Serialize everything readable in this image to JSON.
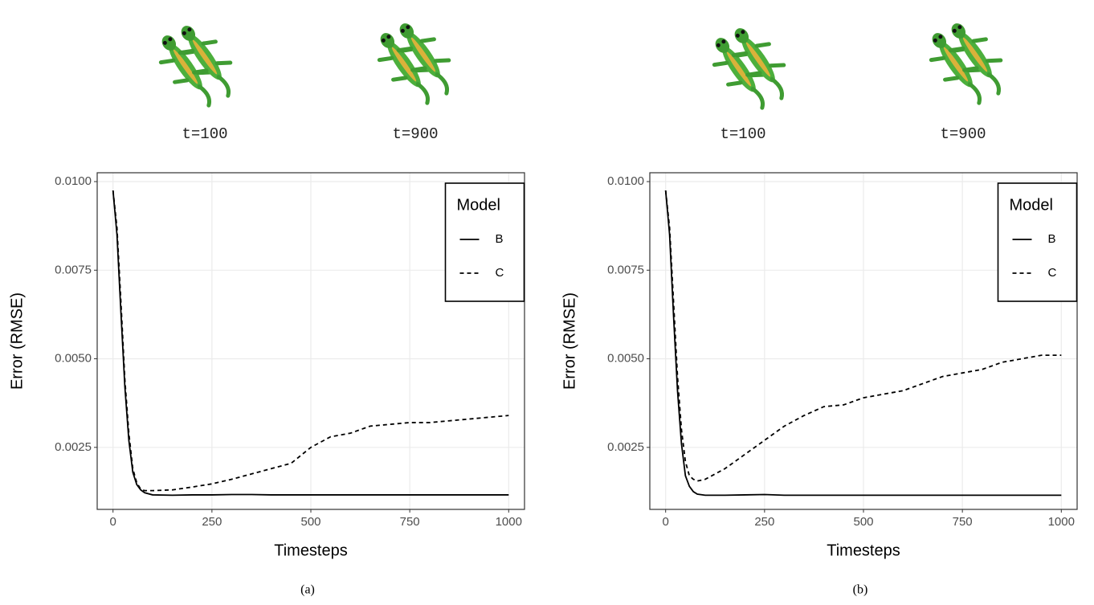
{
  "chart_data": [
    {
      "type": "line",
      "caption": "(a)",
      "annotations": [
        "t=100",
        "t=900"
      ],
      "x_label": "Timesteps",
      "y_label": "Error (RMSE)",
      "x": [
        0,
        10,
        20,
        30,
        40,
        50,
        60,
        70,
        80,
        100,
        150,
        200,
        250,
        300,
        350,
        400,
        450,
        500,
        550,
        600,
        650,
        700,
        750,
        800,
        850,
        900,
        950,
        1000
      ],
      "series": [
        {
          "name": "B",
          "color": "#000000",
          "dash": "solid",
          "values": [
            0.00975,
            0.0085,
            0.0063,
            0.0042,
            0.0027,
            0.0018,
            0.00145,
            0.0013,
            0.00122,
            0.00116,
            0.00115,
            0.00116,
            0.00116,
            0.00117,
            0.00117,
            0.00116,
            0.00116,
            0.00116,
            0.00116,
            0.00116,
            0.00116,
            0.00116,
            0.00116,
            0.00116,
            0.00116,
            0.00116,
            0.00116,
            0.00116
          ]
        },
        {
          "name": "C",
          "color": "#000000",
          "dash": "dashed",
          "values": [
            0.00975,
            0.0087,
            0.0066,
            0.0044,
            0.0029,
            0.0019,
            0.0015,
            0.00132,
            0.00128,
            0.00128,
            0.0013,
            0.00138,
            0.00147,
            0.0016,
            0.00175,
            0.0019,
            0.00205,
            0.0025,
            0.0028,
            0.0029,
            0.0031,
            0.00315,
            0.0032,
            0.0032,
            0.00325,
            0.0033,
            0.00335,
            0.0034
          ]
        }
      ],
      "legend_title": "Model",
      "legend": "top-right",
      "grid": true,
      "xlim": [
        -40,
        1040
      ],
      "xticks": [
        0,
        250,
        500,
        750,
        1000
      ],
      "ylim": [
        0.00075,
        0.01025
      ],
      "yticks": [
        {
          "value": 0.0025,
          "label": "0.0025"
        },
        {
          "value": 0.005,
          "label": "0.0050"
        },
        {
          "value": 0.0075,
          "label": "0.0075"
        },
        {
          "value": 0.01,
          "label": "0.0100"
        }
      ]
    },
    {
      "type": "line",
      "caption": "(b)",
      "annotations": [
        "t=100",
        "t=900"
      ],
      "x_label": "Timesteps",
      "y_label": "Error (RMSE)",
      "x": [
        0,
        10,
        20,
        30,
        40,
        50,
        60,
        70,
        80,
        100,
        150,
        200,
        250,
        300,
        350,
        400,
        450,
        500,
        550,
        600,
        650,
        700,
        750,
        800,
        850,
        900,
        950,
        1000
      ],
      "series": [
        {
          "name": "B",
          "color": "#000000",
          "dash": "solid",
          "values": [
            0.00975,
            0.0085,
            0.0062,
            0.0041,
            0.0026,
            0.0017,
            0.0014,
            0.00125,
            0.00118,
            0.00115,
            0.00115,
            0.00116,
            0.00117,
            0.00115,
            0.00115,
            0.00115,
            0.00115,
            0.00115,
            0.00115,
            0.00115,
            0.00115,
            0.00115,
            0.00115,
            0.00115,
            0.00115,
            0.00115,
            0.00115,
            0.00115
          ]
        },
        {
          "name": "C",
          "color": "#000000",
          "dash": "dashed",
          "values": [
            0.00975,
            0.0087,
            0.0066,
            0.0045,
            0.003,
            0.0021,
            0.0017,
            0.0016,
            0.00155,
            0.0016,
            0.0019,
            0.0023,
            0.0027,
            0.0031,
            0.0034,
            0.00365,
            0.0037,
            0.0039,
            0.004,
            0.0041,
            0.0043,
            0.0045,
            0.0046,
            0.0047,
            0.0049,
            0.005,
            0.0051,
            0.0051
          ]
        }
      ],
      "legend_title": "Model",
      "legend": "top-right",
      "grid": true,
      "xlim": [
        -40,
        1040
      ],
      "xticks": [
        0,
        250,
        500,
        750,
        1000
      ],
      "ylim": [
        0.00075,
        0.01025
      ],
      "yticks": [
        {
          "value": 0.0025,
          "label": "0.0025"
        },
        {
          "value": 0.005,
          "label": "0.0050"
        },
        {
          "value": 0.0075,
          "label": "0.0075"
        },
        {
          "value": 0.01,
          "label": "0.0100"
        }
      ]
    }
  ]
}
